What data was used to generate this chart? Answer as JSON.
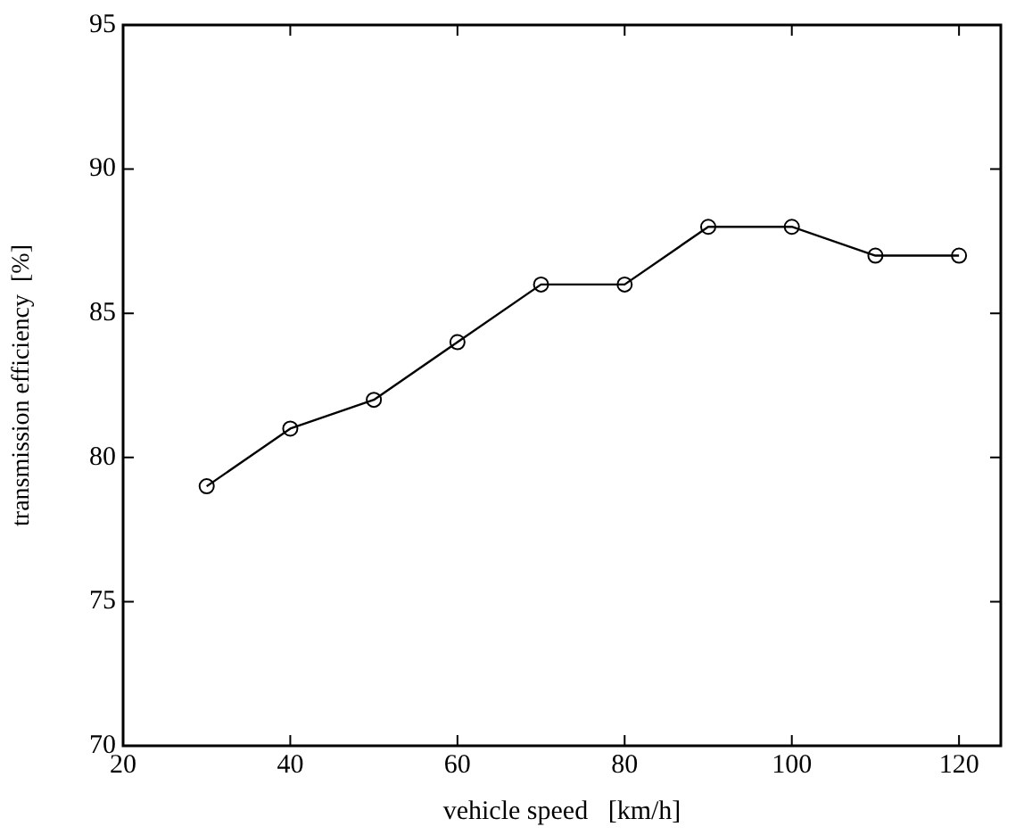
{
  "chart_data": {
    "type": "line",
    "xlabel": "vehicle speed   [km/h]",
    "ylabel": "transmission efficiency  [%]",
    "x": [
      30,
      40,
      50,
      60,
      70,
      80,
      90,
      100,
      110,
      120
    ],
    "series": [
      {
        "color": "#000000",
        "values": [
          79,
          81,
          82,
          84,
          86,
          86,
          88,
          88,
          87,
          87
        ]
      }
    ],
    "xlim": [
      20,
      125
    ],
    "xticks": [
      20,
      40,
      60,
      80,
      100,
      120
    ],
    "ylim": [
      70,
      95
    ],
    "yticks": [
      70,
      75,
      80,
      85,
      90,
      95
    ],
    "grid": false,
    "legend": false,
    "marker": "circle",
    "line_style": "solid"
  }
}
